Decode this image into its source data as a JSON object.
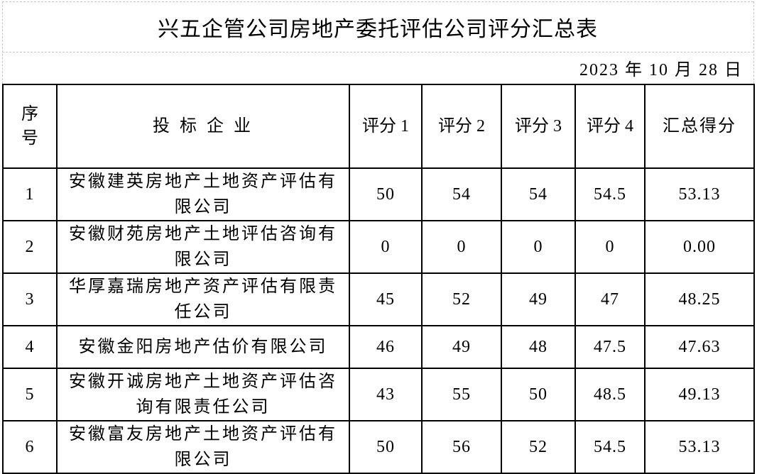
{
  "title": "兴五企管公司房地产委托评估公司评分汇总表",
  "date": "2023 年 10 月 28 日",
  "headers": {
    "index": "序号",
    "company": "投 标 企 业",
    "score1": "评分 1",
    "score2": "评分 2",
    "score3": "评分 3",
    "score4": "评分 4",
    "total": "汇总得分"
  },
  "rows": [
    {
      "index": "1",
      "company": "安徽建英房地产土地资产评估有限公司",
      "score1": "50",
      "score2": "54",
      "score3": "54",
      "score4": "54.5",
      "total": "53.13"
    },
    {
      "index": "2",
      "company": "安徽财苑房地产土地评估咨询有限公司",
      "score1": "0",
      "score2": "0",
      "score3": "0",
      "score4": "0",
      "total": "0.00"
    },
    {
      "index": "3",
      "company": "华厚嘉瑞房地产资产评估有限责任公司",
      "score1": "45",
      "score2": "52",
      "score3": "49",
      "score4": "47",
      "total": "48.25"
    },
    {
      "index": "4",
      "company": "安徽金阳房地产估价有限公司",
      "score1": "46",
      "score2": "49",
      "score3": "48",
      "score4": "47.5",
      "total": "47.63"
    },
    {
      "index": "5",
      "company": "安徽开诚房地产土地资产评估咨询有限责任公司",
      "score1": "43",
      "score2": "55",
      "score3": "50",
      "score4": "48.5",
      "total": "49.13"
    },
    {
      "index": "6",
      "company": "安徽富友房地产土地资产评估有限公司",
      "score1": "50",
      "score2": "56",
      "score3": "52",
      "score4": "54.5",
      "total": "53.13"
    }
  ]
}
